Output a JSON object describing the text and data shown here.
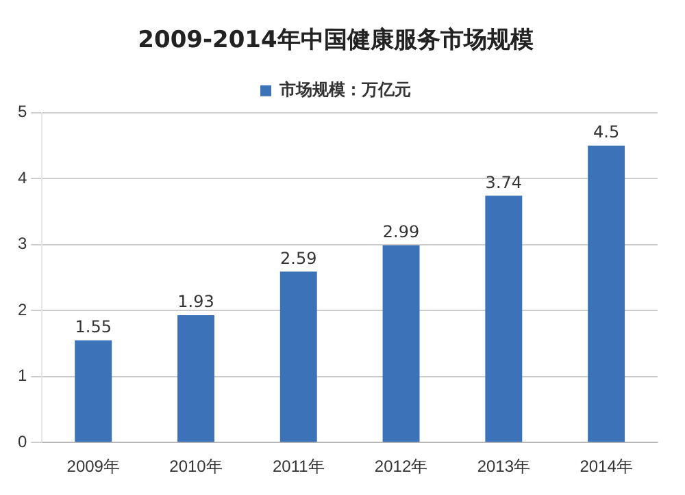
{
  "chart_data": {
    "type": "bar",
    "title": "2009-2014年中国健康服务市场规模",
    "categories": [
      "2009年",
      "2010年",
      "2011年",
      "2012年",
      "2013年",
      "2014年"
    ],
    "series": [
      {
        "name": "市场规模：万亿元",
        "color": "#3c72b8",
        "values": [
          1.55,
          1.93,
          2.59,
          2.99,
          3.74,
          4.5
        ]
      }
    ],
    "ylim": [
      0,
      5
    ],
    "yticks": [
      0,
      1,
      2,
      3,
      4,
      5
    ],
    "grid": "y",
    "legend": "top",
    "data_labels": true
  }
}
